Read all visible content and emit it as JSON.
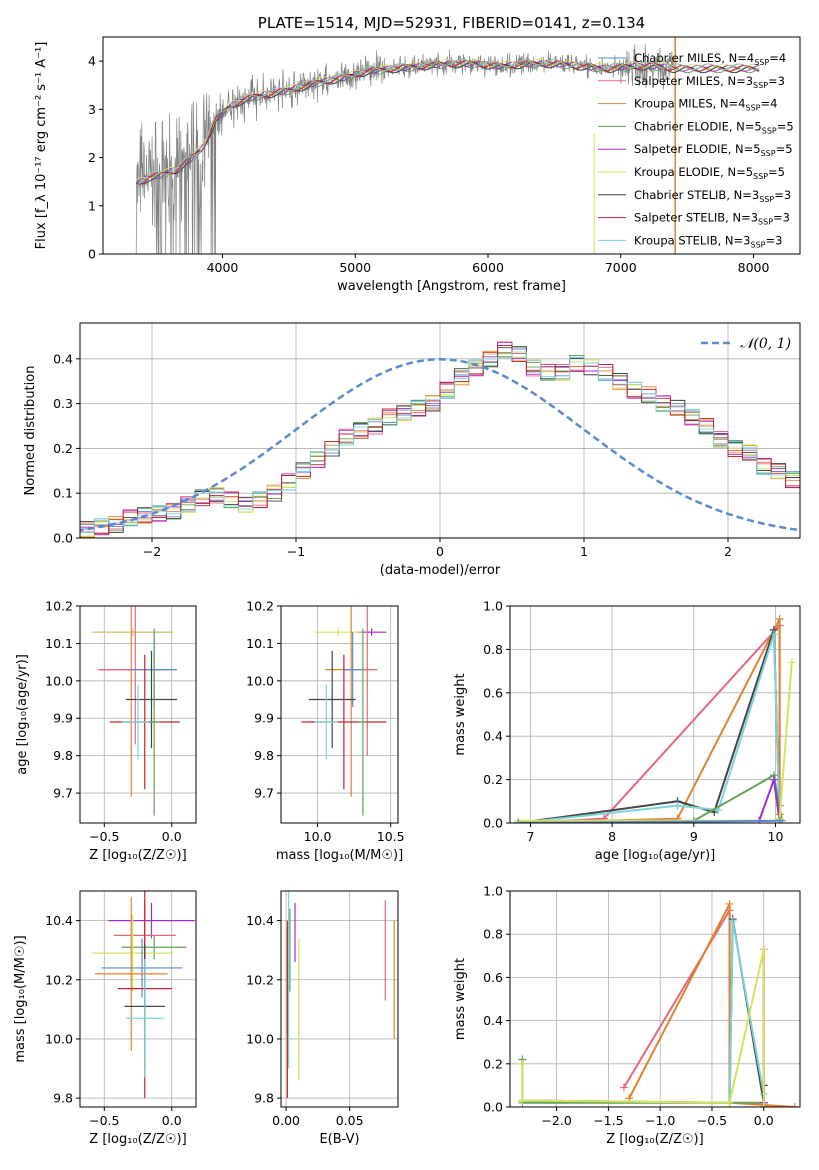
{
  "chart_data": [
    {
      "id": "spectrum",
      "type": "line",
      "title": "PLATE=1514, MJD=52931, FIBERID=0141, z=0.134",
      "xlabel": "wavelength [Angstrom, rest frame]",
      "ylabel": "Flux [f_λ 10⁻¹⁷ erg cm⁻² s⁻¹ A⁻¹]",
      "xlim": [
        3100,
        8350
      ],
      "ylim": [
        0,
        4.5
      ],
      "xticks": [
        "4000",
        "5000",
        "6000",
        "7000",
        "8000"
      ],
      "yticks": [
        "0",
        "1",
        "2",
        "3",
        "4"
      ],
      "legend_location": "upper right",
      "series": [
        {
          "name": "Chabrier MILES, N_SSP=4",
          "color": "#5b8ad1"
        },
        {
          "name": "Salpeter MILES, N_SSP=3",
          "color": "#e5677f"
        },
        {
          "name": "Kroupa MILES, N_SSP=4",
          "color": "#e0822e"
        },
        {
          "name": "Chabrier ELODIE, N_SSP=5",
          "color": "#63a35a"
        },
        {
          "name": "Salpeter ELODIE, N_SSP=5",
          "color": "#a02bd6"
        },
        {
          "name": "Kroupa ELODIE, N_SSP=5",
          "color": "#d8e15a"
        },
        {
          "name": "Chabrier STELIB, N_SSP=3",
          "color": "#444444"
        },
        {
          "name": "Salpeter STELIB, N_SSP=3",
          "color": "#c0262a"
        },
        {
          "name": "Kroupa STELIB, N_SSP=3",
          "color": "#7dd3dc"
        }
      ],
      "data_color": "#808080",
      "continuum": {
        "x": [
          3350,
          3450,
          3550,
          3650,
          3750,
          3850,
          3950,
          4050,
          4150,
          4300,
          4500,
          4700,
          4900,
          5100,
          5300,
          5500,
          5700,
          5900,
          6100,
          6300,
          6500,
          6700,
          6900,
          7100,
          7300,
          7400
        ],
        "y": [
          1.45,
          1.6,
          1.65,
          1.75,
          1.95,
          2.2,
          2.8,
          3.05,
          3.2,
          3.3,
          3.4,
          3.55,
          3.65,
          3.8,
          3.85,
          3.9,
          3.95,
          3.95,
          3.9,
          3.95,
          3.95,
          3.9,
          3.85,
          3.9,
          3.9,
          3.85
        ]
      }
    },
    {
      "id": "residuals",
      "type": "histogram",
      "xlabel": "(data-model)/error",
      "ylabel": "Normed distribution",
      "xlim": [
        -2.5,
        2.5
      ],
      "ylim": [
        0,
        0.48
      ],
      "xticks": [
        "−2",
        "−1",
        "0",
        "1",
        "2"
      ],
      "yticks": [
        "0.0",
        "0.1",
        "0.2",
        "0.3",
        "0.4"
      ],
      "reference_curve": {
        "name": "𝒩(0, 1)",
        "color": "#5b8ad1",
        "style": "dashed"
      },
      "bin_width": 0.1,
      "bins_start": -2.5,
      "values": [
        0.02,
        0.025,
        0.03,
        0.045,
        0.05,
        0.055,
        0.06,
        0.075,
        0.09,
        0.095,
        0.085,
        0.075,
        0.085,
        0.1,
        0.125,
        0.15,
        0.175,
        0.2,
        0.225,
        0.24,
        0.25,
        0.27,
        0.28,
        0.29,
        0.3,
        0.33,
        0.36,
        0.38,
        0.4,
        0.42,
        0.41,
        0.38,
        0.37,
        0.37,
        0.39,
        0.38,
        0.37,
        0.35,
        0.33,
        0.32,
        0.3,
        0.29,
        0.27,
        0.25,
        0.22,
        0.2,
        0.19,
        0.16,
        0.15,
        0.13,
        0.11,
        0.09,
        0.075,
        0.07,
        0.06,
        0.05,
        0.05,
        0.045,
        0.04,
        0.035,
        0.03,
        0.03,
        0.03,
        0.025,
        0.025,
        0.02,
        0.02
      ]
    },
    {
      "id": "age_vs_Z",
      "type": "errorbar",
      "xlabel": "Z [log₁₀(Z/Z☉)]",
      "ylabel": "age  [log₁₀(age/yr)]",
      "xlim": [
        -0.68,
        0.18
      ],
      "ylim": [
        9.62,
        10.2
      ],
      "xticks": [
        "−0.5",
        "0.0"
      ],
      "yticks": [
        "9.7",
        "9.8",
        "9.9",
        "10.0",
        "10.1",
        "10.2"
      ],
      "points": [
        {
          "x": -0.29,
          "y": 10.13,
          "xerr": 0.29,
          "yerr": 0.01,
          "color": "#a02bd6"
        },
        {
          "x": -0.29,
          "y": 10.13,
          "xerr": 0.3,
          "yerr": 0.01,
          "color": "#d8e15a"
        },
        {
          "x": -0.3,
          "y": 10.03,
          "xerr": 0.25,
          "yerr": 0.34,
          "color": "#e0822e"
        },
        {
          "x": -0.27,
          "y": 10.03,
          "xerr": 0.26,
          "yerr": 0.2,
          "color": "#e5677f"
        },
        {
          "x": -0.13,
          "y": 10.03,
          "xerr": 0.17,
          "yerr": 0.1,
          "color": "#5b8ad1"
        },
        {
          "x": -0.15,
          "y": 9.95,
          "xerr": 0.19,
          "yerr": 0.13,
          "color": "#444444"
        },
        {
          "x": -0.2,
          "y": 9.89,
          "xerr": 0.26,
          "yerr": 0.18,
          "color": "#c0262a"
        },
        {
          "x": -0.25,
          "y": 9.89,
          "xerr": 0.12,
          "yerr": 0.1,
          "color": "#7dd3dc"
        },
        {
          "x": -0.13,
          "y": 9.89,
          "xerr": 0.04,
          "yerr": 0.25,
          "color": "#63a35a"
        }
      ]
    },
    {
      "id": "age_vs_mass",
      "type": "errorbar",
      "xlabel": "mass [log₁₀(M/M☉)]",
      "ylabel": "",
      "xlim": [
        9.75,
        10.55
      ],
      "ylim": [
        9.62,
        10.2
      ],
      "xticks": [
        "10.0",
        "10.5"
      ],
      "yticks": [
        "9.7",
        "9.8",
        "9.9",
        "10.0",
        "10.1",
        "10.2"
      ],
      "points": [
        {
          "x": 10.37,
          "y": 10.13,
          "xerr": 0.1,
          "yerr": 0.01,
          "color": "#a02bd6"
        },
        {
          "x": 10.14,
          "y": 10.13,
          "xerr": 0.16,
          "yerr": 0.01,
          "color": "#d8e15a"
        },
        {
          "x": 10.23,
          "y": 10.03,
          "xerr": 0.18,
          "yerr": 0.34,
          "color": "#e0822e"
        },
        {
          "x": 10.34,
          "y": 10.03,
          "xerr": 0.05,
          "yerr": 0.23,
          "color": "#e5677f"
        },
        {
          "x": 10.24,
          "y": 10.03,
          "xerr": 0.06,
          "yerr": 0.1,
          "color": "#5b8ad1"
        },
        {
          "x": 10.1,
          "y": 9.95,
          "xerr": 0.16,
          "yerr": 0.13,
          "color": "#444444"
        },
        {
          "x": 10.18,
          "y": 9.89,
          "xerr": 0.29,
          "yerr": 0.18,
          "color": "#c0262a"
        },
        {
          "x": 10.06,
          "y": 9.89,
          "xerr": 0.08,
          "yerr": 0.1,
          "color": "#7dd3dc"
        },
        {
          "x": 10.31,
          "y": 9.89,
          "xerr": 0.03,
          "yerr": 0.25,
          "color": "#63a35a"
        }
      ]
    },
    {
      "id": "weight_vs_age",
      "type": "line",
      "xlabel": "age  [log₁₀(age/yr)]",
      "ylabel": "mass weight",
      "xlim": [
        6.75,
        10.3
      ],
      "ylim": [
        0,
        1.0
      ],
      "xticks": [
        "7",
        "8",
        "9",
        "10"
      ],
      "yticks": [
        "0.0",
        "0.2",
        "0.4",
        "0.6",
        "0.8",
        "1.0"
      ],
      "series": [
        {
          "color": "#e5677f",
          "x": [
            6.85,
            7.9,
            10.05,
            10.05
          ],
          "y": [
            0.0,
            0.02,
            0.91,
            0.08
          ]
        },
        {
          "color": "#e0822e",
          "x": [
            6.85,
            8.8,
            10.05,
            10.05
          ],
          "y": [
            0.0,
            0.02,
            0.94,
            0.04
          ]
        },
        {
          "color": "#444444",
          "x": [
            6.85,
            8.8,
            9.25,
            9.98,
            10.05
          ],
          "y": [
            0.0,
            0.1,
            0.05,
            0.89,
            0.02
          ]
        },
        {
          "color": "#7dd3dc",
          "x": [
            6.85,
            8.8,
            9.3,
            9.98,
            10.05
          ],
          "y": [
            0.0,
            0.08,
            0.06,
            0.87,
            0.02
          ]
        },
        {
          "color": "#63a35a",
          "x": [
            6.85,
            9.0,
            9.98,
            10.08
          ],
          "y": [
            0.0,
            0.01,
            0.22,
            0.01
          ]
        },
        {
          "color": "#a02bd6",
          "x": [
            6.85,
            9.8,
            9.98,
            10.05
          ],
          "y": [
            0.0,
            0.01,
            0.2,
            0.01
          ]
        },
        {
          "color": "#d8e15a",
          "x": [
            6.85,
            10.0,
            10.05,
            10.2
          ],
          "y": [
            0.01,
            0.01,
            0.02,
            0.74
          ]
        },
        {
          "color": "#5b8ad1",
          "x": [
            6.85,
            10.05
          ],
          "y": [
            0.0,
            0.01
          ]
        }
      ]
    },
    {
      "id": "mass_vs_Z",
      "type": "errorbar",
      "xlabel": "Z [log₁₀(Z/Z☉)]",
      "ylabel": "mass [log₁₀(M/M☉)]",
      "xlim": [
        -0.68,
        0.18
      ],
      "ylim": [
        9.77,
        10.5
      ],
      "xticks": [
        "−0.5",
        "0.0"
      ],
      "yticks": [
        "9.8",
        "10.0",
        "10.2",
        "10.4"
      ],
      "points": [
        {
          "x": -0.15,
          "y": 10.4,
          "xerr": 0.32,
          "yerr": 0.06,
          "color": "#a02bd6"
        },
        {
          "x": -0.2,
          "y": 10.35,
          "xerr": 0.23,
          "yerr": 0.12,
          "color": "#e5677f"
        },
        {
          "x": -0.13,
          "y": 10.31,
          "xerr": 0.24,
          "yerr": 0.04,
          "color": "#63a35a"
        },
        {
          "x": -0.29,
          "y": 10.29,
          "xerr": 0.3,
          "yerr": 0.13,
          "color": "#d8e15a"
        },
        {
          "x": -0.22,
          "y": 10.24,
          "xerr": 0.3,
          "yerr": 0.1,
          "color": "#5b8ad1"
        },
        {
          "x": -0.3,
          "y": 10.22,
          "xerr": 0.27,
          "yerr": 0.26,
          "color": "#e0822e"
        },
        {
          "x": -0.2,
          "y": 10.17,
          "xerr": 0.2,
          "yerr": 0.37,
          "color": "#c0262a"
        },
        {
          "x": -0.2,
          "y": 10.11,
          "xerr": 0.15,
          "yerr": 0.21,
          "color": "#444444"
        },
        {
          "x": -0.2,
          "y": 10.07,
          "xerr": 0.14,
          "yerr": 0.2,
          "color": "#7dd3dc"
        }
      ]
    },
    {
      "id": "mass_vs_ebv",
      "type": "errorbar",
      "xlabel": "E(B-V)",
      "ylabel": "",
      "xlim": [
        -0.004,
        0.088
      ],
      "ylim": [
        9.77,
        10.5
      ],
      "xticks": [
        "0.00",
        "0.05"
      ],
      "yticks": [
        "9.8",
        "10.0",
        "10.2",
        "10.4"
      ],
      "points": [
        {
          "x": 0.001,
          "y": 10.2,
          "xerr": 0.0,
          "yerr": 0.18,
          "color": "#5b8ad1"
        },
        {
          "x": 0.001,
          "y": 10.1,
          "xerr": 0.0,
          "yerr": 0.3,
          "color": "#c0262a"
        },
        {
          "x": 0.002,
          "y": 10.2,
          "xerr": 0.0,
          "yerr": 0.3,
          "color": "#7dd3dc"
        },
        {
          "x": 0.003,
          "y": 10.3,
          "xerr": 0.0,
          "yerr": 0.14,
          "color": "#63a35a"
        },
        {
          "x": 0.007,
          "y": 10.36,
          "xerr": 0.0,
          "yerr": 0.1,
          "color": "#a02bd6"
        },
        {
          "x": 0.01,
          "y": 10.1,
          "xerr": 0.0,
          "yerr": 0.24,
          "color": "#d8e15a"
        },
        {
          "x": 0.078,
          "y": 10.3,
          "xerr": 0.0,
          "yerr": 0.17,
          "color": "#e5677f"
        },
        {
          "x": 0.085,
          "y": 10.2,
          "xerr": 0.0,
          "yerr": 0.2,
          "color": "#e0822e"
        }
      ]
    },
    {
      "id": "weight_vs_Z",
      "type": "line",
      "xlabel": "Z [log₁₀(Z/Z☉)]",
      "ylabel": "mass weight",
      "xlim": [
        -2.45,
        0.35
      ],
      "ylim": [
        0,
        1.0
      ],
      "xticks": [
        "−2.0",
        "−1.5",
        "−1.0",
        "−0.5",
        "0.0"
      ],
      "yticks": [
        "0.0",
        "0.2",
        "0.4",
        "0.6",
        "0.8",
        "1.0"
      ],
      "series": [
        {
          "color": "#e5677f",
          "x": [
            -1.35,
            -0.33,
            -0.33
          ],
          "y": [
            0.09,
            0.91,
            0.02
          ]
        },
        {
          "color": "#e0822e",
          "x": [
            -1.3,
            -0.33,
            -0.33,
            0.3
          ],
          "y": [
            0.04,
            0.94,
            0.02,
            0.0
          ]
        },
        {
          "color": "#444444",
          "x": [
            -2.33,
            -0.33,
            -0.3,
            0.0,
            0.0
          ],
          "y": [
            0.03,
            0.02,
            0.87,
            0.02,
            0.1
          ]
        },
        {
          "color": "#7dd3dc",
          "x": [
            -2.33,
            -2.33,
            -0.33,
            -0.3,
            0.0,
            0.0
          ],
          "y": [
            0.22,
            0.03,
            0.02,
            0.86,
            0.06,
            0.0
          ]
        },
        {
          "color": "#63a35a",
          "x": [
            -2.33,
            -2.33,
            0.0,
            0.0
          ],
          "y": [
            0.22,
            0.02,
            0.02,
            0.0
          ]
        },
        {
          "color": "#a02bd6",
          "x": [
            0.0,
            0.0,
            0.0
          ],
          "y": [
            0.73,
            0.02,
            0.0
          ]
        },
        {
          "color": "#d8e15a",
          "x": [
            -2.33,
            -2.33,
            -0.33,
            0.0,
            0.0
          ],
          "y": [
            0.2,
            0.03,
            0.02,
            0.73,
            0.0
          ]
        }
      ]
    }
  ]
}
